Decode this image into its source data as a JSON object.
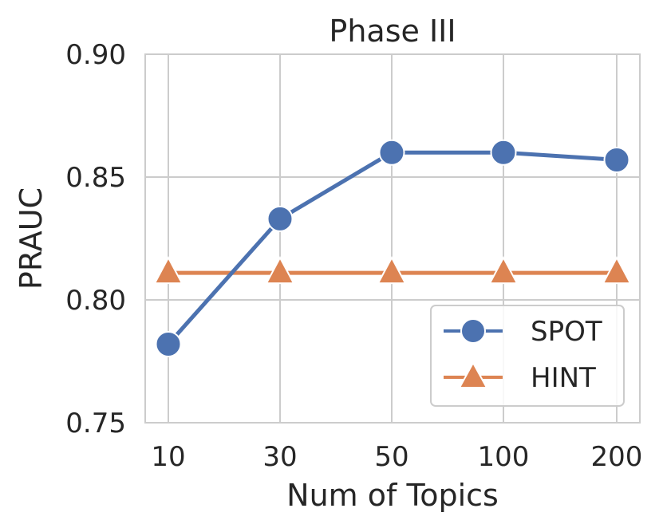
{
  "chart_data": {
    "type": "line",
    "title": "Phase III",
    "xlabel": "Num of Topics",
    "ylabel": "PRAUC",
    "categories": [
      "10",
      "30",
      "50",
      "100",
      "200"
    ],
    "y_ticks": [
      "0.75",
      "0.80",
      "0.85",
      "0.90"
    ],
    "y_tick_values": [
      0.75,
      0.8,
      0.85,
      0.9
    ],
    "ylim": [
      0.75,
      0.9
    ],
    "grid": true,
    "legend_position": "lower-right",
    "series": [
      {
        "name": "SPOT",
        "marker": "circle",
        "color": "#4c72b0",
        "values": [
          0.782,
          0.833,
          0.86,
          0.86,
          0.857
        ]
      },
      {
        "name": "HINT",
        "marker": "triangle",
        "color": "#dd8452",
        "values": [
          0.811,
          0.811,
          0.811,
          0.811,
          0.811
        ]
      }
    ]
  }
}
